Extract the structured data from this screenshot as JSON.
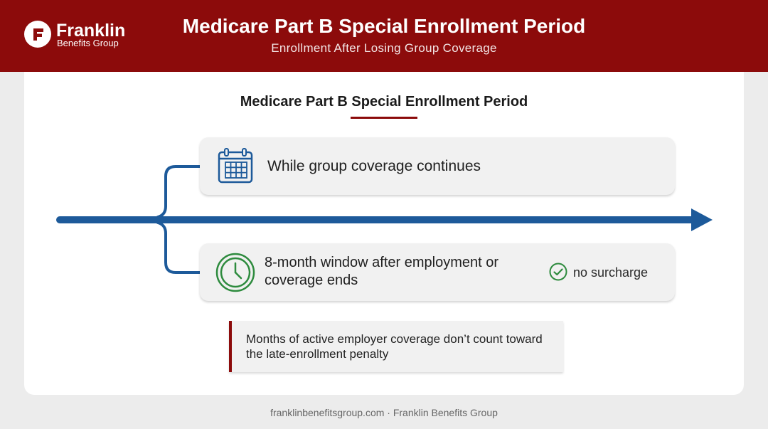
{
  "header": {
    "logo_name": "Franklin",
    "logo_sub": "Benefits Group",
    "title": "Medicare Part B Special Enrollment Period",
    "subtitle": "Enrollment After Losing Group Coverage"
  },
  "diagram": {
    "title": "Medicare Part B Special Enrollment Period",
    "branches": [
      {
        "label": "While group coverage continues",
        "icon": "calendar-icon"
      },
      {
        "label": "8-month window after employment or coverage ends",
        "icon": "clock-icon",
        "badge": "no surcharge",
        "badge_icon": "check-circle-icon"
      }
    ],
    "note": "Months of active employer coverage don’t count toward the late-enrollment penalty"
  },
  "footer": "franklinbenefitsgroup.com · Franklin Benefits Group",
  "colors": {
    "brand_red": "#8c0b0b",
    "timeline_blue": "#1d5a9a",
    "clock_green": "#2e8b3e",
    "check_green": "#2e8b3e"
  }
}
